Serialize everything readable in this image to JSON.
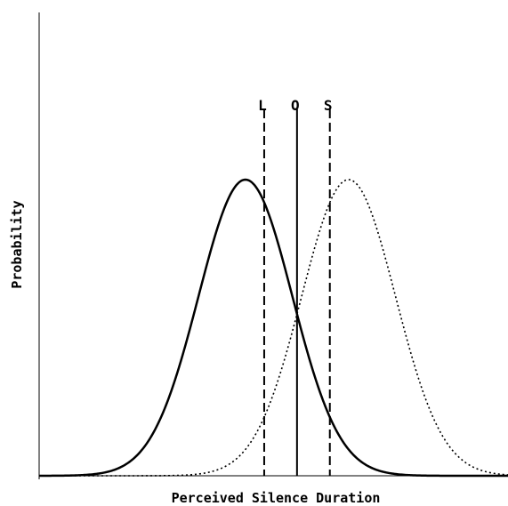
{
  "chart_data": {
    "type": "line",
    "title": "",
    "xlabel": "Perceived Silence Duration",
    "ylabel": "Probability",
    "xticks": [],
    "yticks": [],
    "grid": false,
    "legend": "none",
    "colors": {
      "line": "#000000",
      "background": "#ffffff"
    },
    "series": [
      {
        "style": "solid",
        "mean": 0.44,
        "sd": 0.1,
        "peak": 1.0
      },
      {
        "style": "dotted",
        "mean": 0.66,
        "sd": 0.1,
        "peak": 1.0
      }
    ],
    "markers": [
      {
        "label": "L",
        "x": 0.48,
        "style": "dashed"
      },
      {
        "label": "O",
        "x": 0.55,
        "style": "solid"
      },
      {
        "label": "S",
        "x": 0.62,
        "style": "dashed"
      }
    ]
  }
}
